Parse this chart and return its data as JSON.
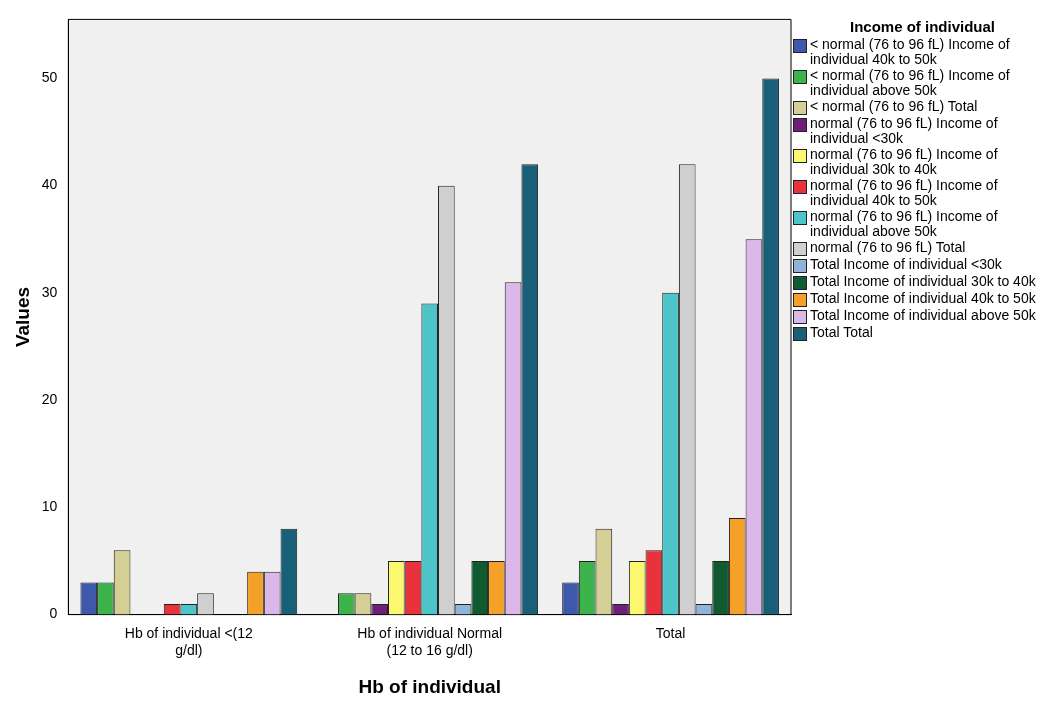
{
  "chart_data": {
    "type": "bar",
    "xlabel": "Hb of individual",
    "ylabel": "Values",
    "legend_title": "Income of individual",
    "categories": [
      "Hb of individual <(12 g/dl)",
      "Hb of individual Normal (12 to 16 g/dl)",
      "Total"
    ],
    "ylim": [
      0,
      55.5
    ],
    "yticks": [
      0,
      10,
      20,
      30,
      40,
      50
    ],
    "grid": false,
    "legend": "right",
    "series": [
      {
        "name": "< normal (76 to 96 fL) Income of individual 40k to 50k",
        "color": "#3e58ac",
        "values": [
          3,
          0,
          3
        ]
      },
      {
        "name": "< normal (76 to 96 fL) Income of individual above 50k",
        "color": "#3cb44b",
        "values": [
          3,
          2,
          5
        ]
      },
      {
        "name": "< normal (76 to 96 fL) Total",
        "color": "#d4cf94",
        "values": [
          6,
          2,
          8
        ]
      },
      {
        "name": "normal (76 to 96 fL) Income of individual <30k",
        "color": "#6d1f7a",
        "values": [
          0,
          1,
          1
        ]
      },
      {
        "name": "normal (76 to 96 fL) Income of individual 30k to 40k",
        "color": "#fbf870",
        "values": [
          0,
          5,
          5
        ]
      },
      {
        "name": "normal (76 to 96 fL) Income of individual 40k to 50k",
        "color": "#e8333d",
        "values": [
          1,
          5,
          6
        ]
      },
      {
        "name": "normal (76 to 96 fL) Income of individual above 50k",
        "color": "#4dc4c7",
        "values": [
          1,
          29,
          30
        ]
      },
      {
        "name": "normal (76 to 96 fL) Total",
        "color": "#cfcfcf",
        "values": [
          2,
          40,
          42
        ]
      },
      {
        "name": "Total Income of individual <30k",
        "color": "#8fb3d9",
        "values": [
          0,
          1,
          1
        ]
      },
      {
        "name": "Total Income of individual 30k to 40k",
        "color": "#0f5a2e",
        "values": [
          0,
          5,
          5
        ]
      },
      {
        "name": "Total Income of individual 40k to 50k",
        "color": "#f5a026",
        "values": [
          4,
          5,
          9
        ]
      },
      {
        "name": "Total Income of individual above 50k",
        "color": "#dcb8ea",
        "values": [
          4,
          31,
          35
        ]
      },
      {
        "name": "Total Total",
        "color": "#1a5f78",
        "values": [
          8,
          42,
          50
        ]
      }
    ]
  }
}
